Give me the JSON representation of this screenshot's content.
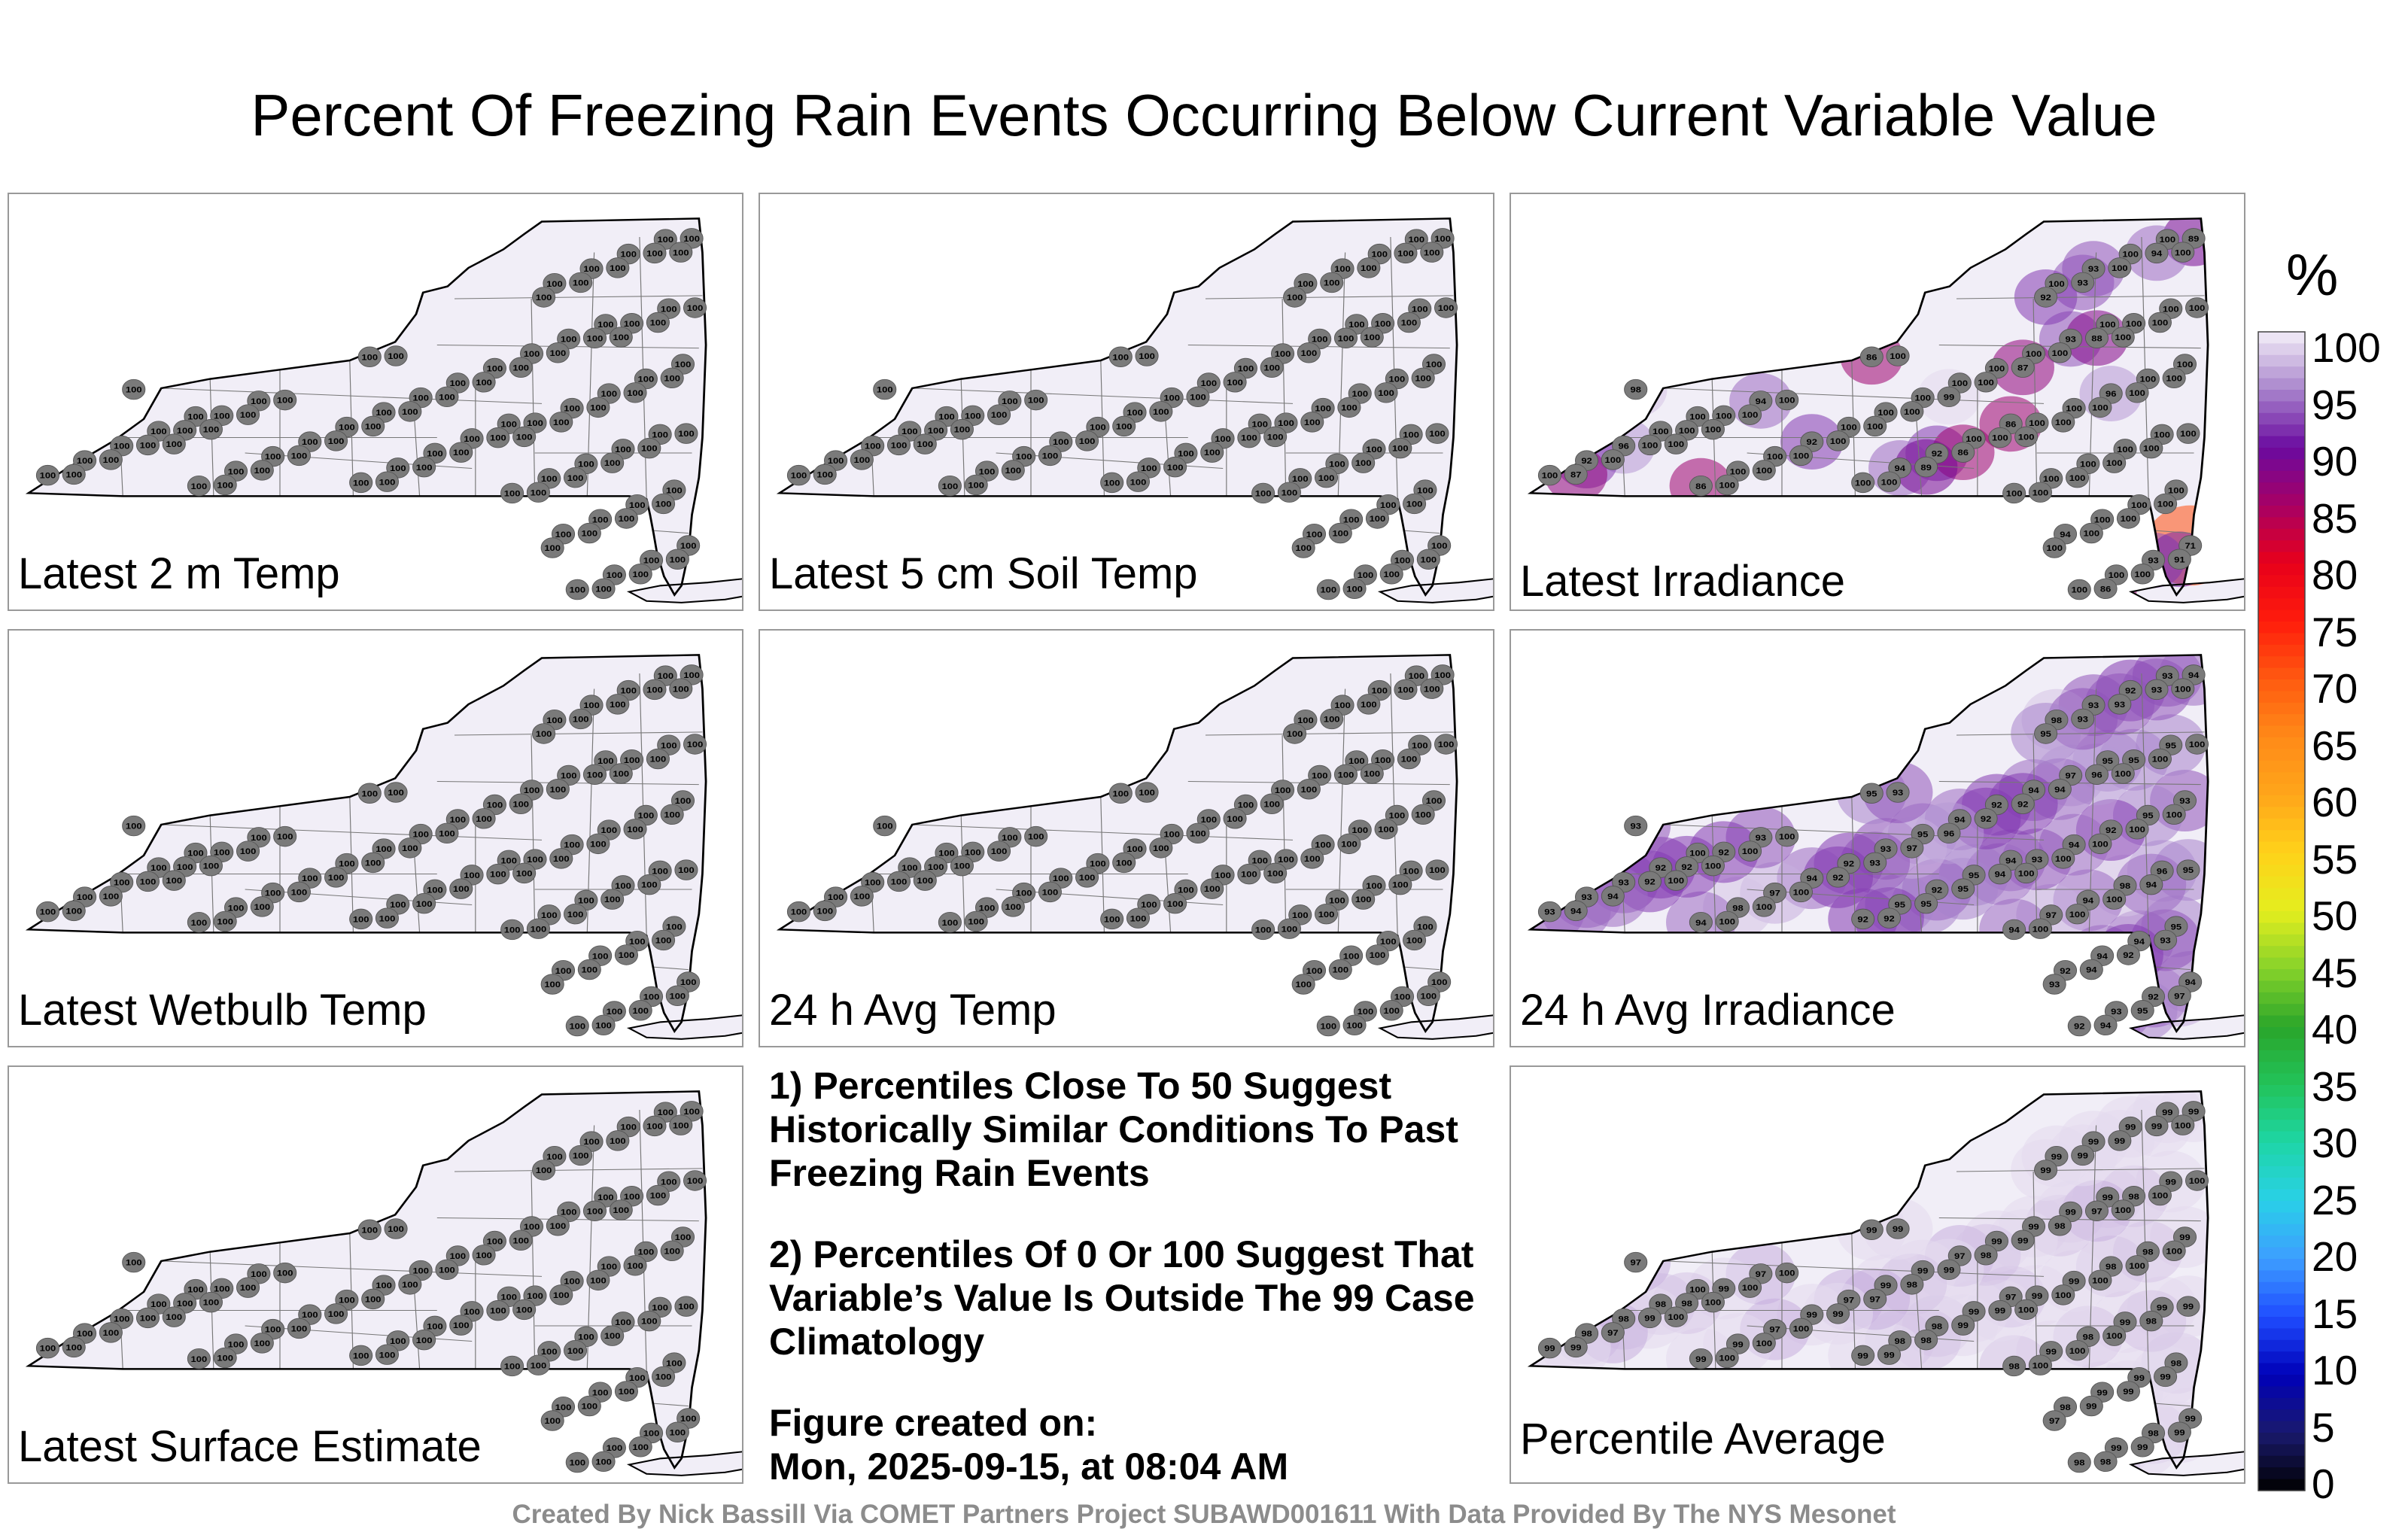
{
  "title": "Percent Of Freezing Rain Events Occurring Below Current Variable Value",
  "panels": [
    {
      "label": "Latest 2 m Temp",
      "scheme": "uniform",
      "stations": [
        "100",
        "100",
        "100",
        "100",
        "100",
        "100",
        "100",
        "100",
        "100",
        "100",
        "100",
        "100",
        "100",
        "100",
        "100",
        "100",
        "100",
        "100",
        "100",
        "100",
        "100",
        "100",
        "100",
        "100",
        "100",
        "100",
        "100",
        "100",
        "100",
        "100",
        "100",
        "100",
        "100",
        "100",
        "100",
        "100",
        "100",
        "100",
        "100",
        "100",
        "100",
        "100",
        "100",
        "100",
        "100",
        "100",
        "100",
        "100",
        "100",
        "100",
        "100",
        "100",
        "100",
        "100",
        "100",
        "100",
        "100",
        "100",
        "100",
        "100",
        "100",
        "100",
        "100",
        "100",
        "100",
        "100",
        "100",
        "100",
        "100",
        "100",
        "100",
        "100",
        "100",
        "100",
        "100",
        "100",
        "100",
        "100",
        "100",
        "100",
        "100",
        "100",
        "100",
        "100",
        "100",
        "100",
        "100",
        "100",
        "100",
        "100",
        "100",
        "100",
        "100",
        "100",
        "100",
        "100",
        "100",
        "100",
        "100",
        "100"
      ]
    },
    {
      "label": "Latest 5 cm Soil Temp",
      "scheme": "uniform",
      "stations": [
        "100",
        "100",
        "100",
        "100",
        "100",
        "100",
        "100",
        "100",
        "100",
        "100",
        "100",
        "100",
        "100",
        "100",
        "100",
        "100",
        "100",
        "100",
        "100",
        "100",
        "100",
        "100",
        "100",
        "100",
        "100",
        "100",
        "100",
        "100",
        "100",
        "100",
        "100",
        "100",
        "100",
        "100",
        "100",
        "100",
        "100",
        "100",
        "100",
        "100",
        "100",
        "100",
        "100",
        "100",
        "100",
        "100",
        "100",
        "100",
        "100",
        "100",
        "100",
        "100",
        "100",
        "100",
        "100",
        "100",
        "100",
        "100",
        "100",
        "100",
        "100",
        "100",
        "100",
        "100",
        "100",
        "100",
        "100",
        "100",
        "100",
        "100",
        "100",
        "100",
        "100",
        "100",
        "100",
        "100",
        "100",
        "100",
        "100",
        "100",
        "100",
        "100",
        "100",
        "100",
        "100",
        "100",
        "100",
        "100",
        "100",
        "100",
        "100",
        "100",
        "100",
        "100",
        "100",
        "100",
        "100",
        "100",
        "100",
        "100"
      ]
    },
    {
      "label": "Latest Irradiance",
      "scheme": "irradiance",
      "stations": [
        "100",
        "100",
        "86",
        "100",
        "100",
        "93",
        "100",
        "100",
        "96",
        "100",
        "71",
        "92",
        "93",
        "92",
        "100",
        "93",
        "94",
        "100",
        "100",
        "100",
        "100",
        "100",
        "100",
        "100",
        "100",
        "100",
        "100",
        "100",
        "100",
        "100",
        "94",
        "92",
        "100",
        "86",
        "100",
        "100",
        "100",
        "100",
        "100",
        "100",
        "86",
        "96",
        "100",
        "94",
        "100",
        "100",
        "100",
        "100",
        "100",
        "89",
        "100",
        "88",
        "100",
        "94",
        "100",
        "100",
        "86",
        "100",
        "100",
        "87",
        "91",
        "89",
        "93",
        "87",
        "100",
        "100",
        "100",
        "98",
        "92",
        "99",
        "86",
        "100",
        "100",
        "100",
        "100",
        "100",
        "100",
        "100",
        "100",
        "100",
        "100",
        "100",
        "100",
        "100",
        "100",
        "100",
        "100",
        "100",
        "100",
        "100",
        "100",
        "100",
        "100",
        "100",
        "100",
        "100",
        "100",
        "100",
        "100",
        "100"
      ]
    },
    {
      "label": "Latest Wetbulb Temp",
      "scheme": "uniform",
      "stations": [
        "100",
        "100",
        "100",
        "100",
        "100",
        "100",
        "100",
        "100",
        "100",
        "100",
        "100",
        "100",
        "100",
        "100",
        "100",
        "100",
        "100",
        "100",
        "100",
        "100",
        "100",
        "100",
        "100",
        "100",
        "100",
        "100",
        "100",
        "100",
        "100",
        "100",
        "100",
        "100",
        "100",
        "100",
        "100",
        "100",
        "100",
        "100",
        "100",
        "100",
        "100",
        "100",
        "100",
        "100",
        "100",
        "100",
        "100",
        "100",
        "100",
        "100",
        "100",
        "100",
        "100",
        "100",
        "100",
        "100",
        "100",
        "100",
        "100",
        "100",
        "100",
        "100",
        "100",
        "100",
        "100",
        "100",
        "100",
        "100",
        "100",
        "100",
        "100",
        "100",
        "100",
        "100",
        "100",
        "100",
        "100",
        "100",
        "100",
        "100",
        "100",
        "100",
        "100",
        "100",
        "100",
        "100",
        "100",
        "100",
        "100",
        "100",
        "100",
        "100",
        "100",
        "100",
        "100",
        "100",
        "100",
        "100",
        "100",
        "100"
      ]
    },
    {
      "label": "24 h Avg Temp",
      "scheme": "uniform",
      "stations": [
        "100",
        "100",
        "100",
        "100",
        "100",
        "100",
        "100",
        "100",
        "100",
        "100",
        "100",
        "100",
        "100",
        "100",
        "100",
        "100",
        "100",
        "100",
        "100",
        "100",
        "100",
        "100",
        "100",
        "100",
        "100",
        "100",
        "100",
        "100",
        "100",
        "100",
        "100",
        "100",
        "100",
        "100",
        "100",
        "100",
        "100",
        "100",
        "100",
        "100",
        "100",
        "100",
        "100",
        "100",
        "100",
        "100",
        "100",
        "100",
        "100",
        "100",
        "100",
        "100",
        "100",
        "100",
        "100",
        "100",
        "100",
        "100",
        "100",
        "100",
        "100",
        "100",
        "100",
        "100",
        "100",
        "100",
        "100",
        "100",
        "100",
        "100",
        "100",
        "100",
        "100",
        "100",
        "100",
        "100",
        "100",
        "100",
        "100",
        "100",
        "100",
        "100",
        "100",
        "100",
        "100",
        "100",
        "100",
        "100",
        "100",
        "100",
        "100",
        "100",
        "100",
        "100",
        "100",
        "100",
        "100",
        "100",
        "100",
        "100"
      ]
    },
    {
      "label": "24 h Avg Irradiance",
      "scheme": "avg-irradiance",
      "stations": [
        "100",
        "95",
        "94",
        "93",
        "92",
        "97",
        "95",
        "92",
        "93",
        "94",
        "94",
        "92",
        "93",
        "93",
        "92",
        "92",
        "95",
        "98",
        "93",
        "94",
        "93",
        "92",
        "95",
        "95",
        "92",
        "94",
        "93",
        "94",
        "92",
        "96",
        "92",
        "94",
        "98",
        "95",
        "97",
        "93",
        "94",
        "98",
        "95",
        "97",
        "94",
        "92",
        "94",
        "93",
        "95",
        "94",
        "92",
        "95",
        "93",
        "94",
        "92",
        "96",
        "94",
        "93",
        "92",
        "94",
        "95",
        "93",
        "94",
        "92",
        "97",
        "95",
        "93",
        "94",
        "92",
        "95",
        "92",
        "93",
        "95",
        "96",
        "94",
        "93",
        "97",
        "92",
        "93",
        "95",
        "94",
        "92",
        "94",
        "93",
        "93",
        "100",
        "100",
        "100",
        "100",
        "100",
        "100",
        "100",
        "100",
        "100",
        "100",
        "100",
        "100",
        "100",
        "100",
        "100",
        "100",
        "100",
        "100",
        "100"
      ]
    },
    {
      "label": "Latest Surface Estimate",
      "scheme": "uniform",
      "stations": [
        "100",
        "100",
        "100",
        "100",
        "100",
        "100",
        "100",
        "100",
        "100",
        "100",
        "100",
        "100",
        "100",
        "100",
        "100",
        "100",
        "100",
        "100",
        "100",
        "100",
        "100",
        "100",
        "100",
        "100",
        "100",
        "100",
        "100",
        "100",
        "100",
        "100",
        "100",
        "100",
        "100",
        "100",
        "100",
        "100",
        "100",
        "100",
        "100",
        "100",
        "100",
        "100",
        "100",
        "100",
        "100",
        "100",
        "100",
        "100",
        "100",
        "100",
        "100",
        "100",
        "100",
        "100",
        "100",
        "100",
        "100",
        "100",
        "100",
        "100",
        "100",
        "100",
        "100",
        "100",
        "100",
        "100",
        "100",
        "100",
        "100",
        "100",
        "100",
        "100",
        "100",
        "100",
        "100",
        "100",
        "100",
        "100",
        "100",
        "100",
        "100",
        "100",
        "100",
        "100",
        "100",
        "100",
        "100",
        "100",
        "100",
        "100",
        "100",
        "100",
        "100",
        "100",
        "100",
        "100",
        "100",
        "100",
        "100",
        "100"
      ]
    },
    {
      "label": "Percentile Average",
      "scheme": "average",
      "stations": [
        "100",
        "99",
        "97",
        "99",
        "98",
        "99",
        "99",
        "99",
        "98",
        "99",
        "99",
        "98",
        "99",
        "98",
        "99",
        "98",
        "98",
        "99",
        "99",
        "97",
        "99",
        "99",
        "98",
        "99",
        "98",
        "99",
        "99",
        "99",
        "97",
        "99",
        "98",
        "99",
        "99",
        "99",
        "97",
        "99",
        "98",
        "99",
        "98",
        "99",
        "99",
        "98",
        "98",
        "97",
        "99",
        "99",
        "99",
        "98",
        "99",
        "99",
        "98",
        "97",
        "99",
        "99",
        "99",
        "98",
        "99",
        "99",
        "97",
        "99",
        "99",
        "98",
        "99",
        "99",
        "98",
        "99",
        "99",
        "97",
        "99",
        "99",
        "98",
        "99",
        "98",
        "99",
        "97",
        "99",
        "99",
        "99",
        "98",
        "99",
        "97",
        "100",
        "100",
        "100",
        "100",
        "100",
        "100",
        "100",
        "100",
        "100",
        "100",
        "100",
        "100",
        "100",
        "100",
        "100",
        "100",
        "100",
        "100",
        "100"
      ]
    }
  ],
  "notes": {
    "note1": "1) Percentiles Close To 50 Suggest Historically Similar Conditions To Past Freezing Rain Events",
    "note2": "2) Percentiles Of 0 Or 100 Suggest That Variable’s Value Is Outside The 99 Case Climatology",
    "created_label": "Figure created on:",
    "created_value": "Mon, 2025-09-15, at 08:04 AM"
  },
  "colorbar": {
    "unit": "%",
    "ticks": [
      "100",
      "95",
      "90",
      "85",
      "80",
      "75",
      "70",
      "65",
      "60",
      "55",
      "50",
      "45",
      "40",
      "35",
      "30",
      "25",
      "20",
      "15",
      "10",
      "5",
      "0"
    ],
    "stops": [
      {
        "v": 0,
        "c": "#000000"
      },
      {
        "v": 5,
        "c": "#1a1a6e"
      },
      {
        "v": 10,
        "c": "#0000b8"
      },
      {
        "v": 15,
        "c": "#1f4dff"
      },
      {
        "v": 20,
        "c": "#3d9eff"
      },
      {
        "v": 25,
        "c": "#29d0e8"
      },
      {
        "v": 30,
        "c": "#1ed6a6"
      },
      {
        "v": 35,
        "c": "#22c35a"
      },
      {
        "v": 40,
        "c": "#2aa52a"
      },
      {
        "v": 45,
        "c": "#86d22a"
      },
      {
        "v": 50,
        "c": "#e4ee1e"
      },
      {
        "v": 55,
        "c": "#ffd21a"
      },
      {
        "v": 60,
        "c": "#ffa61a"
      },
      {
        "v": 65,
        "c": "#ff8a18"
      },
      {
        "v": 70,
        "c": "#ff5a10"
      },
      {
        "v": 75,
        "c": "#ff1c0c"
      },
      {
        "v": 80,
        "c": "#e8001a"
      },
      {
        "v": 85,
        "c": "#a80064"
      },
      {
        "v": 90,
        "c": "#6a0aa0"
      },
      {
        "v": 95,
        "c": "#a884cc"
      },
      {
        "v": 100,
        "c": "#f3eff8"
      }
    ]
  },
  "credit": "Created By Nick Bassill Via COMET Partners Project SUBAWD001611 With Data Provided By The NYS Mesonet"
}
